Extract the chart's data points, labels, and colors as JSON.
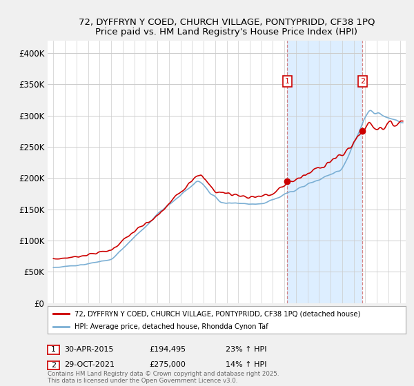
{
  "title_line1": "72, DYFFRYN Y COED, CHURCH VILLAGE, PONTYPRIDD, CF38 1PQ",
  "title_line2": "Price paid vs. HM Land Registry's House Price Index (HPI)",
  "ylim": [
    0,
    420000
  ],
  "yticks": [
    0,
    50000,
    100000,
    150000,
    200000,
    250000,
    300000,
    350000,
    400000
  ],
  "ytick_labels": [
    "£0",
    "£50K",
    "£100K",
    "£150K",
    "£200K",
    "£250K",
    "£300K",
    "£350K",
    "£400K"
  ],
  "red_line_color": "#cc0000",
  "blue_line_color": "#7bafd4",
  "shade_color": "#ddeeff",
  "sale1_year": 2015,
  "sale1_month": 4,
  "sale1_price": 194495,
  "sale1_hpi": "23%",
  "sale1_date": "30-APR-2015",
  "sale2_year": 2021,
  "sale2_month": 10,
  "sale2_price": 275000,
  "sale2_hpi": "14%",
  "sale2_date": "29-OCT-2021",
  "legend_line1": "72, DYFFRYN Y COED, CHURCH VILLAGE, PONTYPRIDD, CF38 1PQ (detached house)",
  "legend_line2": "HPI: Average price, detached house, Rhondda Cynon Taf",
  "footer": "Contains HM Land Registry data © Crown copyright and database right 2025.\nThis data is licensed under the Open Government Licence v3.0.",
  "background_color": "#f0f0f0",
  "plot_background": "#ffffff",
  "xstart": 1995,
  "xend": 2025
}
